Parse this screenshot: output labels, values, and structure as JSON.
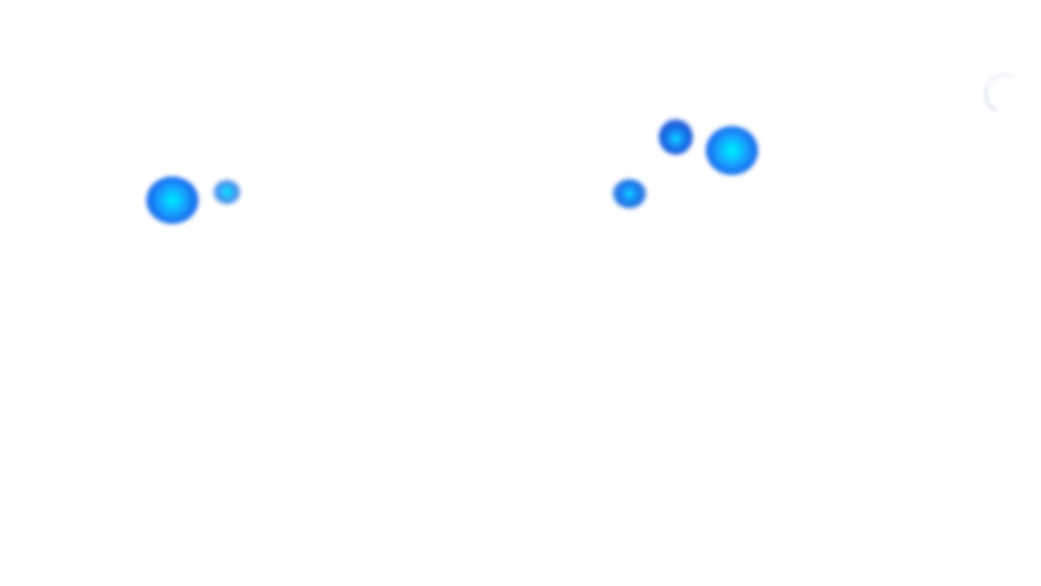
{
  "colors": {
    "background": "#ffffff",
    "glow_core": "#00e5ff",
    "glow_mid": "#1a9cff",
    "glow_edge": "#1565e8",
    "loader": "#e3e8f2"
  },
  "icons": {
    "glow_dots": "glowing-dot-icon",
    "spinner": "loading-spinner-icon"
  }
}
